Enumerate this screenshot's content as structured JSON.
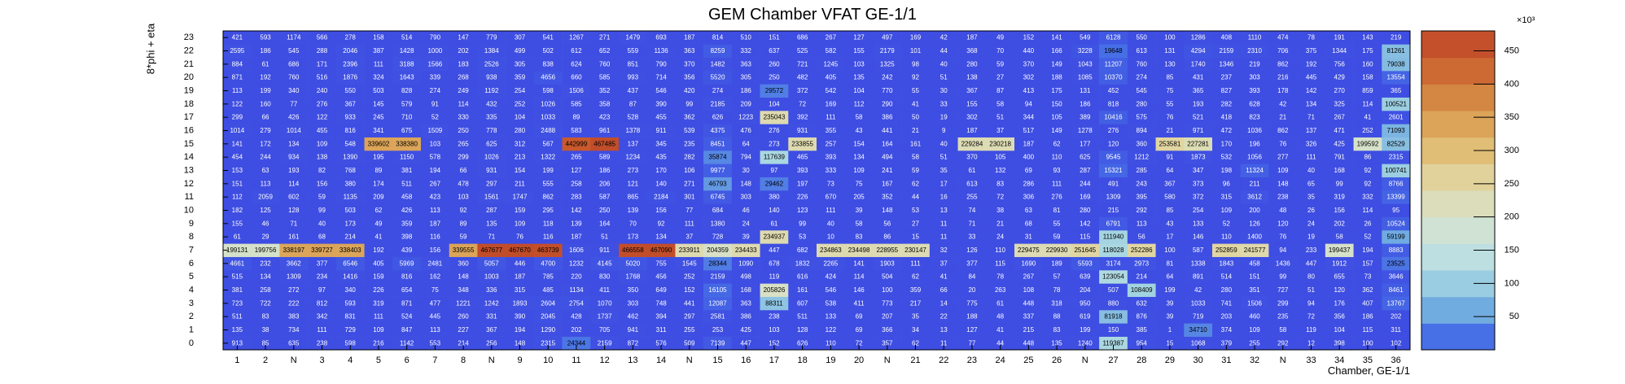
{
  "chart_data": {
    "type": "heatmap",
    "title": "GEM Chamber VFAT GE-1/1",
    "xlabel": "Chamber, GE-1/1",
    "ylabel": "8*phi + eta",
    "x_categories": [
      "1",
      "2",
      "N",
      "3",
      "4",
      "5",
      "6",
      "7",
      "8",
      "N",
      "9",
      "10",
      "11",
      "12",
      "13",
      "14",
      "N",
      "15",
      "16",
      "17",
      "18",
      "19",
      "20",
      "N",
      "21",
      "22",
      "23",
      "24",
      "25",
      "26",
      "N",
      "27",
      "28",
      "29",
      "30",
      "31",
      "32",
      "N",
      "33",
      "34",
      "35",
      "36"
    ],
    "y_categories": [
      "0",
      "1",
      "2",
      "3",
      "4",
      "5",
      "6",
      "7",
      "8",
      "9",
      "10",
      "11",
      "12",
      "13",
      "14",
      "15",
      "16",
      "17",
      "18",
      "19",
      "20",
      "21",
      "22",
      "23"
    ],
    "colorbar": {
      "ticks": [
        "50",
        "100",
        "150",
        "200",
        "250",
        "300",
        "350",
        "400",
        "450"
      ],
      "tick_values": [
        50000,
        100000,
        150000,
        200000,
        250000,
        300000,
        350000,
        400000,
        450000
      ],
      "exponent_label": "×10³",
      "min": 0,
      "max": 480000
    },
    "rows": [
      [
        "913",
        "85",
        "635",
        "238",
        "598",
        "216",
        "1142",
        "553",
        "214",
        "256",
        "148",
        "2315",
        "24344",
        "2159",
        "872",
        "576",
        "509",
        "7139",
        "447",
        "152",
        "626",
        "110",
        "72",
        "357",
        "62",
        "11",
        "77",
        "44",
        "448",
        "135",
        "1240",
        "119387",
        "954",
        "15",
        "1068",
        "379",
        "255",
        "292",
        "12",
        "398",
        "100",
        "102"
      ],
      [
        "135",
        "38",
        "734",
        "111",
        "729",
        "109",
        "847",
        "113",
        "227",
        "367",
        "194",
        "1290",
        "202",
        "705",
        "941",
        "311",
        "255",
        "253",
        "425",
        "103",
        "128",
        "122",
        "69",
        "366",
        "34",
        "13",
        "127",
        "41",
        "215",
        "83",
        "199",
        "150",
        "385",
        "1",
        "34710",
        "374",
        "109",
        "58",
        "119",
        "104",
        "115",
        "311"
      ],
      [
        "511",
        "83",
        "383",
        "342",
        "831",
        "111",
        "524",
        "445",
        "260",
        "331",
        "390",
        "2045",
        "428",
        "1737",
        "462",
        "394",
        "297",
        "2581",
        "386",
        "238",
        "511",
        "133",
        "69",
        "207",
        "35",
        "22",
        "188",
        "48",
        "337",
        "88",
        "619",
        "81918",
        "876",
        "39",
        "719",
        "203",
        "460",
        "235",
        "72",
        "356",
        "186",
        "202"
      ],
      [
        "723",
        "722",
        "222",
        "812",
        "593",
        "319",
        "871",
        "477",
        "1221",
        "1242",
        "1893",
        "2604",
        "2754",
        "1070",
        "303",
        "748",
        "441",
        "12087",
        "363",
        "88311",
        "607",
        "538",
        "411",
        "773",
        "217",
        "14",
        "775",
        "61",
        "448",
        "318",
        "950",
        "880",
        "632",
        "39",
        "1033",
        "741",
        "1506",
        "299",
        "94",
        "176",
        "407",
        "13767"
      ],
      [
        "381",
        "258",
        "272",
        "97",
        "340",
        "226",
        "654",
        "75",
        "348",
        "336",
        "315",
        "485",
        "1134",
        "411",
        "350",
        "649",
        "152",
        "16105",
        "168",
        "205826",
        "161",
        "546",
        "146",
        "100",
        "359",
        "66",
        "20",
        "263",
        "108",
        "78",
        "204",
        "507",
        "108409",
        "199",
        "42",
        "280",
        "351",
        "727",
        "51",
        "120",
        "362",
        "8461"
      ],
      [
        "515",
        "134",
        "1309",
        "234",
        "1416",
        "159",
        "816",
        "162",
        "148",
        "1003",
        "187",
        "785",
        "220",
        "830",
        "1768",
        "456",
        "252",
        "2159",
        "498",
        "119",
        "616",
        "424",
        "114",
        "504",
        "62",
        "41",
        "84",
        "78",
        "267",
        "57",
        "639",
        "123054",
        "214",
        "64",
        "891",
        "514",
        "151",
        "99",
        "80",
        "655",
        "73",
        "3646"
      ],
      [
        "4661",
        "232",
        "3662",
        "377",
        "6546",
        "405",
        "5969",
        "2481",
        "360",
        "5057",
        "446",
        "4700",
        "1232",
        "4145",
        "5020",
        "755",
        "1545",
        "28344",
        "1090",
        "678",
        "1832",
        "2265",
        "141",
        "1903",
        "111",
        "37",
        "377",
        "115",
        "1690",
        "189",
        "5593",
        "3174",
        "2973",
        "81",
        "1338",
        "1843",
        "458",
        "1436",
        "447",
        "1912",
        "157",
        "23525"
      ],
      [
        "199131",
        "199756",
        "338197",
        "339727",
        "338403",
        "192",
        "439",
        "156",
        "339555",
        "467677",
        "467670",
        "463739",
        "1606",
        "911",
        "466558",
        "467090",
        "233911",
        "204359",
        "234433",
        "447",
        "682",
        "234863",
        "234498",
        "228955",
        "230147",
        "32",
        "126",
        "110",
        "229475",
        "229930",
        "251645",
        "118028",
        "252286",
        "100",
        "587",
        "252859",
        "241577",
        "94",
        "233",
        "199437",
        "194",
        "8883"
      ],
      [
        "61",
        "29",
        "161",
        "68",
        "214",
        "41",
        "398",
        "116",
        "59",
        "71",
        "76",
        "116",
        "187",
        "51",
        "173",
        "134",
        "37",
        "728",
        "39",
        "234937",
        "53",
        "10",
        "83",
        "86",
        "15",
        "11",
        "33",
        "24",
        "31",
        "59",
        "115",
        "111940",
        "56",
        "17",
        "146",
        "110",
        "1400",
        "76",
        "19",
        "58",
        "52",
        "59199"
      ],
      [
        "155",
        "46",
        "71",
        "40",
        "173",
        "49",
        "359",
        "187",
        "89",
        "135",
        "109",
        "118",
        "139",
        "164",
        "70",
        "92",
        "111",
        "1380",
        "24",
        "61",
        "99",
        "40",
        "58",
        "56",
        "27",
        "11",
        "71",
        "21",
        "68",
        "55",
        "142",
        "6791",
        "113",
        "43",
        "133",
        "52",
        "126",
        "120",
        "24",
        "202",
        "26",
        "10524"
      ],
      [
        "182",
        "125",
        "128",
        "99",
        "503",
        "62",
        "426",
        "113",
        "92",
        "287",
        "159",
        "295",
        "142",
        "250",
        "139",
        "156",
        "77",
        "684",
        "46",
        "140",
        "123",
        "111",
        "39",
        "148",
        "53",
        "13",
        "74",
        "38",
        "63",
        "81",
        "280",
        "215",
        "292",
        "85",
        "254",
        "109",
        "200",
        "48",
        "26",
        "156",
        "114",
        "95"
      ],
      [
        "112",
        "2059",
        "602",
        "59",
        "1135",
        "209",
        "458",
        "423",
        "103",
        "1561",
        "1747",
        "862",
        "283",
        "587",
        "865",
        "2184",
        "301",
        "6745",
        "303",
        "380",
        "226",
        "670",
        "205",
        "352",
        "44",
        "16",
        "255",
        "72",
        "306",
        "276",
        "169",
        "1309",
        "395",
        "580",
        "372",
        "315",
        "3612",
        "238",
        "35",
        "319",
        "332",
        "13399"
      ],
      [
        "151",
        "113",
        "114",
        "156",
        "380",
        "174",
        "511",
        "267",
        "478",
        "297",
        "211",
        "555",
        "258",
        "206",
        "121",
        "140",
        "271",
        "46793",
        "148",
        "29462",
        "197",
        "73",
        "75",
        "167",
        "62",
        "17",
        "613",
        "83",
        "286",
        "111",
        "244",
        "491",
        "243",
        "367",
        "373",
        "96",
        "211",
        "148",
        "65",
        "99",
        "92",
        "8766"
      ],
      [
        "153",
        "63",
        "193",
        "82",
        "768",
        "89",
        "381",
        "194",
        "66",
        "931",
        "154",
        "199",
        "127",
        "186",
        "273",
        "170",
        "106",
        "9977",
        "30",
        "97",
        "393",
        "333",
        "109",
        "241",
        "59",
        "35",
        "61",
        "132",
        "69",
        "93",
        "287",
        "15321",
        "285",
        "64",
        "347",
        "198",
        "11324",
        "109",
        "40",
        "168",
        "92",
        "100741"
      ],
      [
        "454",
        "244",
        "934",
        "138",
        "1390",
        "195",
        "1150",
        "578",
        "299",
        "1026",
        "213",
        "1322",
        "265",
        "589",
        "1234",
        "435",
        "282",
        "35874",
        "794",
        "117639",
        "465",
        "393",
        "134",
        "494",
        "58",
        "51",
        "370",
        "105",
        "400",
        "110",
        "625",
        "9545",
        "1212",
        "91",
        "1873",
        "532",
        "1056",
        "277",
        "111",
        "791",
        "86",
        "2315"
      ],
      [
        "141",
        "172",
        "134",
        "109",
        "548",
        "339602",
        "338380",
        "103",
        "265",
        "625",
        "312",
        "567",
        "442999",
        "467485",
        "137",
        "345",
        "235",
        "8451",
        "64",
        "273",
        "233855",
        "257",
        "154",
        "164",
        "161",
        "40",
        "229284",
        "230218",
        "187",
        "62",
        "177",
        "120",
        "360",
        "253581",
        "227281",
        "170",
        "196",
        "76",
        "326",
        "425",
        "199592",
        "82529"
      ],
      [
        "1014",
        "279",
        "1014",
        "455",
        "816",
        "341",
        "675",
        "1509",
        "250",
        "778",
        "280",
        "2488",
        "583",
        "961",
        "1378",
        "911",
        "539",
        "4375",
        "476",
        "276",
        "931",
        "355",
        "43",
        "441",
        "21",
        "9",
        "187",
        "37",
        "517",
        "149",
        "1278",
        "276",
        "894",
        "21",
        "971",
        "472",
        "1036",
        "862",
        "137",
        "471",
        "252",
        "71093"
      ],
      [
        "299",
        "66",
        "426",
        "122",
        "933",
        "245",
        "710",
        "52",
        "330",
        "335",
        "104",
        "1033",
        "89",
        "423",
        "528",
        "455",
        "362",
        "626",
        "1223",
        "235043",
        "392",
        "111",
        "58",
        "386",
        "50",
        "19",
        "302",
        "51",
        "344",
        "105",
        "389",
        "10416",
        "575",
        "76",
        "521",
        "418",
        "823",
        "21",
        "71",
        "267",
        "41",
        "2601"
      ],
      [
        "122",
        "160",
        "77",
        "276",
        "367",
        "145",
        "579",
        "91",
        "114",
        "432",
        "252",
        "1026",
        "585",
        "358",
        "87",
        "390",
        "99",
        "2185",
        "209",
        "104",
        "72",
        "169",
        "112",
        "290",
        "41",
        "33",
        "155",
        "58",
        "94",
        "150",
        "186",
        "818",
        "280",
        "55",
        "193",
        "282",
        "628",
        "42",
        "134",
        "325",
        "114",
        "100521"
      ],
      [
        "113",
        "199",
        "340",
        "240",
        "550",
        "503",
        "828",
        "274",
        "249",
        "1192",
        "254",
        "598",
        "1506",
        "352",
        "437",
        "546",
        "420",
        "274",
        "186",
        "29572",
        "372",
        "542",
        "104",
        "770",
        "55",
        "30",
        "367",
        "87",
        "413",
        "175",
        "131",
        "452",
        "545",
        "75",
        "365",
        "827",
        "393",
        "178",
        "142",
        "270",
        "859",
        "365"
      ],
      [
        "871",
        "192",
        "760",
        "516",
        "1876",
        "324",
        "1643",
        "339",
        "268",
        "938",
        "359",
        "4656",
        "660",
        "585",
        "993",
        "714",
        "356",
        "5520",
        "305",
        "250",
        "482",
        "405",
        "135",
        "242",
        "92",
        "51",
        "138",
        "27",
        "302",
        "188",
        "1085",
        "10370",
        "274",
        "85",
        "431",
        "237",
        "303",
        "216",
        "445",
        "429",
        "158",
        "13554"
      ],
      [
        "884",
        "61",
        "686",
        "171",
        "2396",
        "111",
        "3188",
        "1566",
        "183",
        "2526",
        "305",
        "838",
        "624",
        "760",
        "851",
        "790",
        "370",
        "1482",
        "363",
        "260",
        "721",
        "1245",
        "103",
        "1325",
        "98",
        "40",
        "280",
        "59",
        "370",
        "149",
        "1043",
        "11207",
        "760",
        "130",
        "1740",
        "1346",
        "219",
        "862",
        "192",
        "756",
        "160",
        "79038"
      ],
      [
        "2595",
        "186",
        "545",
        "288",
        "2046",
        "387",
        "1428",
        "1000",
        "202",
        "1384",
        "499",
        "502",
        "612",
        "652",
        "559",
        "1136",
        "363",
        "8259",
        "332",
        "637",
        "525",
        "582",
        "155",
        "2179",
        "101",
        "44",
        "368",
        "70",
        "440",
        "166",
        "3228",
        "19648",
        "613",
        "131",
        "4294",
        "2159",
        "2310",
        "706",
        "375",
        "1344",
        "175",
        "81261"
      ],
      [
        "421",
        "593",
        "1174",
        "566",
        "278",
        "158",
        "514",
        "790",
        "147",
        "779",
        "307",
        "541",
        "1267",
        "271",
        "1479",
        "693",
        "187",
        "814",
        "510",
        "151",
        "686",
        "267",
        "127",
        "497",
        "169",
        "42",
        "187",
        "49",
        "152",
        "141",
        "549",
        "6128",
        "550",
        "100",
        "1286",
        "408",
        "1110",
        "474",
        "78",
        "191",
        "143",
        "219"
      ]
    ]
  }
}
